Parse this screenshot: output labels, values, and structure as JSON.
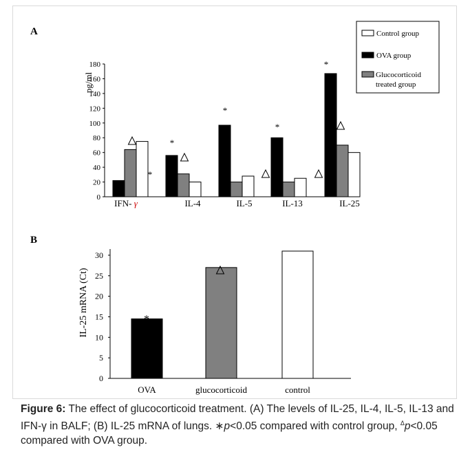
{
  "chart_data": [
    {
      "panel_label": "A",
      "type": "bar",
      "ylabel": "pg/ml",
      "yticks": [
        0,
        20,
        40,
        60,
        80,
        100,
        120,
        140,
        160,
        180
      ],
      "ylim": [
        0,
        180
      ],
      "categories": [
        "IFN- ",
        "IL-4",
        "IL-5",
        "IL-13",
        "IL-25"
      ],
      "category_suffix": "γ",
      "series": [
        {
          "name": "Control group",
          "color": "#ffffff",
          "values": [
            75,
            20,
            28,
            25,
            60
          ]
        },
        {
          "name": "OVA group",
          "color": "#000000",
          "values": [
            22,
            56,
            97,
            80,
            167
          ]
        },
        {
          "name": "Glucocorticoid treated group",
          "color": "#808080",
          "values": [
            64,
            31,
            20,
            20,
            70
          ]
        }
      ],
      "legend": {
        "position": "top-right"
      },
      "annotations": {
        "star": "*",
        "triangle": "△"
      }
    },
    {
      "panel_label": "B",
      "type": "bar",
      "ylabel": "IL-25 mRNA (Ct)",
      "yticks": [
        0,
        5,
        10,
        15,
        20,
        25,
        30
      ],
      "ylim": [
        0,
        30
      ],
      "categories": [
        "OVA",
        "glucocorticoid",
        "control"
      ],
      "values": [
        14.5,
        27,
        31
      ],
      "colors": [
        "#000000",
        "#808080",
        "#ffffff"
      ],
      "annotations": [
        "*",
        "△",
        ""
      ]
    }
  ],
  "caption": {
    "label": "Figure 6:",
    "text": " The effect of glucocorticoid treatment. (A) The levels of IL-25, IL-4, IL-5, IL-13 and IFN-γ in BALF; (B) IL-25 mRNA of lungs. ∗",
    "p1": "p",
    "text2": "<0.05 compared with control group, ",
    "tri": "Δ",
    "p2": "p",
    "text3": "<0.05 compared with OVA group."
  }
}
